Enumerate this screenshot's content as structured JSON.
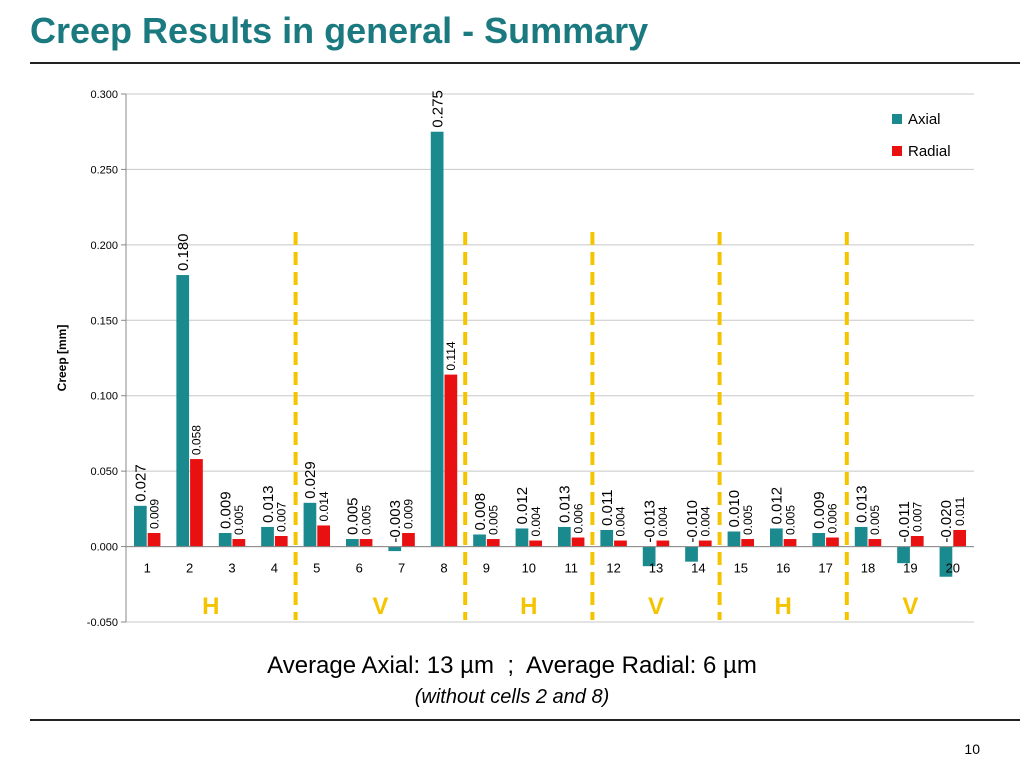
{
  "slide": {
    "title": "Creep Results in general - Summary",
    "note_main": "Average Axial: 13 µm  ;  Average Radial: 6 µm",
    "note_sub": "(without cells 2 and 8)",
    "page_number": "10"
  },
  "chart_data": {
    "type": "bar",
    "title": "",
    "xlabel": "",
    "ylabel": "Creep [mm]",
    "ylim": [
      -0.05,
      0.3
    ],
    "yticks": [
      -0.05,
      0.0,
      0.05,
      0.1,
      0.15,
      0.2,
      0.25,
      0.3
    ],
    "ytick_labels": [
      "-0.050",
      "0.000",
      "0.050",
      "0.100",
      "0.150",
      "0.200",
      "0.250",
      "0.300"
    ],
    "grid": true,
    "legend": "top-right",
    "categories": [
      "1",
      "2",
      "3",
      "4",
      "5",
      "6",
      "7",
      "8",
      "9",
      "10",
      "11",
      "12",
      "13",
      "14",
      "15",
      "16",
      "17",
      "18",
      "19",
      "20"
    ],
    "series": [
      {
        "name": "Axial",
        "color": "#1a8a8f",
        "values": [
          0.027,
          0.18,
          0.009,
          0.013,
          0.029,
          0.005,
          -0.003,
          0.275,
          0.008,
          0.012,
          0.013,
          0.011,
          -0.013,
          -0.01,
          0.01,
          0.012,
          0.009,
          0.013,
          -0.011,
          -0.02
        ],
        "labels": [
          "0.027",
          "0.180",
          "0.009",
          "0.013",
          "0.029",
          "0.005",
          "-0.003",
          "0.275",
          "0.008",
          "0.012",
          "0.013",
          "0.011",
          "-0.013",
          "-0.010",
          "0.010",
          "0.012",
          "0.009",
          "0.013",
          "-0.011",
          "-0.020"
        ]
      },
      {
        "name": "Radial",
        "color": "#e81010",
        "values": [
          0.009,
          0.058,
          0.005,
          0.007,
          0.014,
          0.005,
          0.009,
          0.114,
          0.005,
          0.004,
          0.006,
          0.004,
          0.004,
          0.004,
          0.005,
          0.005,
          0.006,
          0.005,
          0.007,
          0.011
        ],
        "labels": [
          "0.009",
          "0.058",
          "0.005",
          "0.007",
          "0.014",
          "0.005",
          "0.009",
          "0.114",
          "0.005",
          "0.004",
          "0.006",
          "0.004",
          "0.004",
          "0.004",
          "0.005",
          "0.005",
          "0.006",
          "0.005",
          "0.007",
          "0.011"
        ]
      }
    ],
    "dividers_after": [
      4,
      8,
      11,
      14,
      17
    ],
    "divider_color": "#f5c400",
    "groups": [
      {
        "label": "H",
        "first": 1,
        "last": 4
      },
      {
        "label": "V",
        "first": 5,
        "last": 8
      },
      {
        "label": "H",
        "first": 9,
        "last": 11
      },
      {
        "label": "V",
        "first": 12,
        "last": 14
      },
      {
        "label": "H",
        "first": 15,
        "last": 17
      },
      {
        "label": "V",
        "first": 18,
        "last": 20
      }
    ],
    "group_label_color": "#f5c400"
  }
}
